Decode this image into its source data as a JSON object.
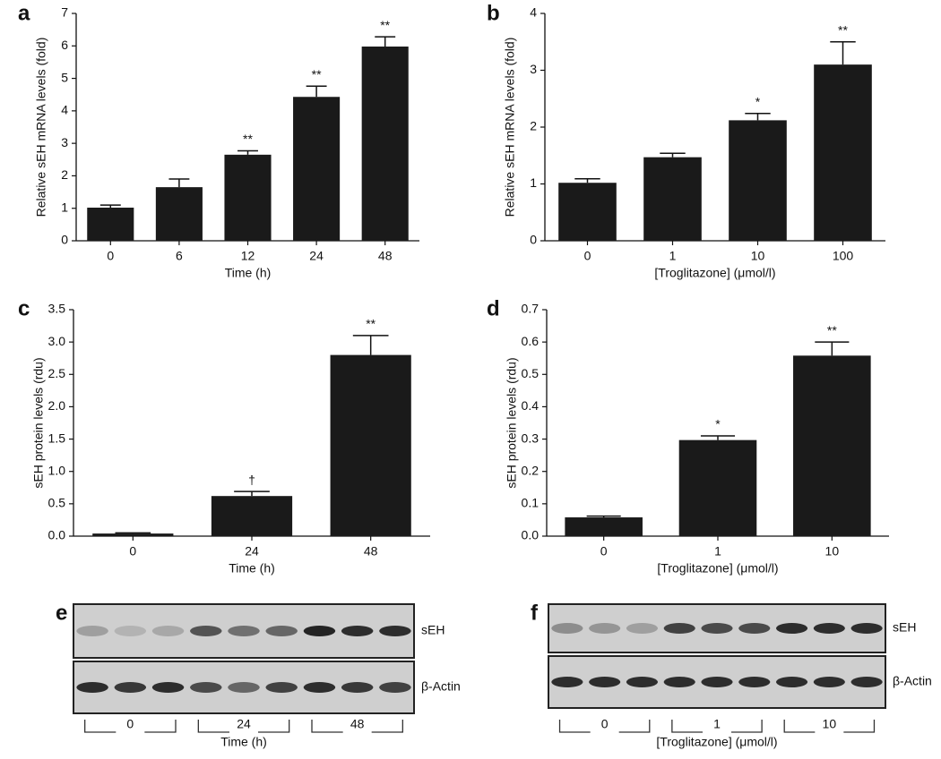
{
  "chart_data": [
    {
      "type": "bar",
      "panel": "a",
      "ylabel": "Relative sEH mRNA levels (fold)",
      "xlabel": "Time (h)",
      "categories": [
        "0",
        "6",
        "12",
        "24",
        "48"
      ],
      "values": [
        1.02,
        1.65,
        2.65,
        4.43,
        5.98
      ],
      "errors": [
        0.08,
        0.25,
        0.12,
        0.33,
        0.3
      ],
      "annotations": [
        null,
        null,
        "**",
        "**",
        "**"
      ],
      "color": "#1a1a1a",
      "ylim": [
        0,
        7
      ],
      "yticks": [
        0,
        1,
        2,
        3,
        4,
        5,
        6,
        7
      ]
    },
    {
      "type": "bar",
      "panel": "b",
      "ylabel": "Relative sEH mRNA levels (fold)",
      "xlabel": "[Troglitazone] (μmol/l)",
      "categories": [
        "0",
        "1",
        "10",
        "100"
      ],
      "values": [
        1.02,
        1.47,
        2.12,
        3.1
      ],
      "errors": [
        0.07,
        0.07,
        0.12,
        0.4
      ],
      "annotations": [
        null,
        null,
        "*",
        "**"
      ],
      "color": "#1a1a1a",
      "ylim": [
        0,
        4
      ],
      "yticks": [
        0,
        1,
        2,
        3,
        4
      ]
    },
    {
      "type": "bar",
      "panel": "c",
      "ylabel": "sEH protein levels (rdu)",
      "xlabel": "Time (h)",
      "categories": [
        "0",
        "24",
        "48"
      ],
      "values": [
        0.04,
        0.62,
        2.8
      ],
      "errors": [
        0.01,
        0.07,
        0.3
      ],
      "annotations": [
        null,
        "†",
        "**"
      ],
      "color": "#1a1a1a",
      "ylim": [
        0,
        3.5
      ],
      "yticks": [
        {
          "value": 0,
          "label": "0.0"
        },
        0.5,
        {
          "value": 1,
          "label": "1.0"
        },
        1.5,
        {
          "value": 2,
          "label": "2.0"
        },
        2.5,
        {
          "value": 3,
          "label": "3.0"
        },
        3.5
      ]
    },
    {
      "type": "bar",
      "panel": "d",
      "ylabel": "sEH protein levels (rdu)",
      "xlabel": "[Troglitazone] (μmol/l)",
      "categories": [
        "0",
        "1",
        "10"
      ],
      "values": [
        0.058,
        0.297,
        0.558
      ],
      "errors": [
        0.004,
        0.013,
        0.042
      ],
      "annotations": [
        null,
        "*",
        "**"
      ],
      "color": "#1a1a1a",
      "ylim": [
        0,
        0.7
      ],
      "yticks": [
        {
          "value": 0,
          "label": "0.0"
        },
        0.1,
        0.2,
        0.3,
        0.4,
        0.5,
        0.6,
        0.7
      ]
    }
  ],
  "blots": [
    {
      "panel": "e",
      "rows": [
        "sEH",
        "β-Actin"
      ],
      "groups": [
        "0",
        "24",
        "48"
      ],
      "xlabel": "Time (h)"
    },
    {
      "panel": "f",
      "rows": [
        "sEH",
        "β-Actin"
      ],
      "groups": [
        "0",
        "1",
        "10"
      ],
      "xlabel": "[Troglitazone] (μmol/l)"
    }
  ]
}
